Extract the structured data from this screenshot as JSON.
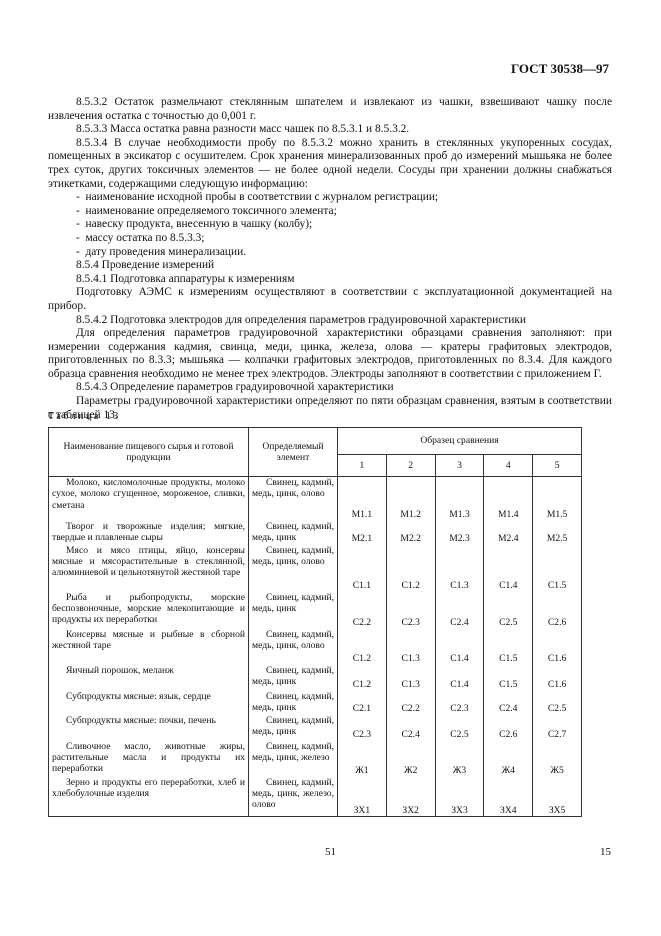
{
  "header": {
    "code": "ГОСТ 30538—97"
  },
  "paragraphs": [
    "8.5.3.2 Остаток размельчают стеклянным шпателем и извлекают из чашки, взвешивают чашку после извлечения остатка с точностью до 0,001 г.",
    "8.5.3.3 Масса остатка равна разности масс чашек по 8.5.3.1 и 8.5.3.2.",
    "8.5.3.4 В случае необходимости пробу по 8.5.3.2 можно хранить в стеклянных укупоренных сосудах, помещенных в эксикатор с осушителем. Срок хранения минерализованных проб до измерений мышьяка не более трех суток, других токсичных элементов — не более одной недели. Сосуды при хранении должны снабжаться этикетками, содержащими следующую информацию:"
  ],
  "list": [
    "наименование исходной пробы в соответствии с журналом регистрации;",
    "наименование определяемого токсичного элемента;",
    "навеску продукта, внесенную в чашку (колбу);",
    "массу остатка по 8.5.3.3;",
    "дату проведения минерализации."
  ],
  "paragraphs2": [
    "8.5.4 Проведение измерений",
    "8.5.4.1 Подготовка аппаратуры к измерениям",
    "Подготовку АЭМС к измерениям осуществляют в соответствии с эксплуатационной документацией на прибор.",
    "8.5.4.2 Подготовка электродов для определения параметров градуировочной характеристики",
    "Для определения параметров градуировочной характеристики образцами сравнения заполняют: при измерении содержания кадмия, свинца, меди, цинка, железа, олова — кратеры графитовых электродов, приготовленных по 8.3.3; мышьяка — колпачки графитовых электродов, приготовленных по 8.3.4. Для каждого образца сравнения необходимо не менее трех электродов. Электроды заполняют в соответствии с приложением Г.",
    "8.5.4.3 Определение параметров градуировочной характеристики",
    "Параметры градуировочной характеристики определяют по пяти образцам сравнения, взятым в соответствии с таблицей 13."
  ],
  "table": {
    "caption": "Таблица 13",
    "headers": [
      "Наименование пищевого сырья и готовой продукции",
      "Определяемый элемент",
      "Образец сравнения"
    ],
    "sample_numbers": [
      "1",
      "2",
      "3",
      "4",
      "5"
    ],
    "rows": [
      [
        "Молоко, кисломолочные продукты, молоко сухое, молоко сгущенное, мороженое, сливки, сметана",
        "Свинец, кадмий, медь, цинк, олово",
        "М1.1",
        "М1.2",
        "М1.3",
        "М1.4",
        "М1.5"
      ],
      [
        "Творог и творожные изделия; мягкие, твердые и плавленые сыры",
        "Свинец, кадмий, медь, цинк",
        "М2.1",
        "М2.2",
        "М2.3",
        "М2.4",
        "М2.5"
      ],
      [
        "Мясо и мясо птицы, яйцо, консервы мясные и мясорастительные в стеклянной, алюминиевой и цельнотянутой жестяной таре",
        "Свинец, кадмий, медь, цинк, олово",
        "С1.1",
        "С1.2",
        "С1.3",
        "С1.4",
        "С1.5"
      ],
      [
        "Рыба и рыбопродукты, морские беспозвоночные, морские млекопитающие и продукты их переработки",
        "Свинец, кадмий, медь, цинк",
        "С2.2",
        "С2.3",
        "С2.4",
        "С2.5",
        "С2.6"
      ],
      [
        "Консервы мясные и рыбные в сборной жестяной таре",
        "Свинец, кадмий, медь, цинк, олово",
        "С1.2",
        "С1.3",
        "С1.4",
        "С1.5",
        "С1.6"
      ],
      [
        "Яичный порошок, меланж",
        "Свинец, кадмий, медь, цинк",
        "С1.2",
        "С1.3",
        "С1.4",
        "С1.5",
        "С1.6"
      ],
      [
        "Субпродукты мясные: язык, сердце",
        "Свинец, кадмий, медь, цинк",
        "С2.1",
        "С2.2",
        "С2.3",
        "С2.4",
        "С2.5"
      ],
      [
        "Субпродукты мясные: почки, печень",
        "Свинец, кадмий, медь, цинк",
        "С2.3",
        "С2.4",
        "С2.5",
        "С2.6",
        "С2.7"
      ],
      [
        "Сливочное масло, животные жиры, растительные масла и продукты их переработки",
        "Свинец, кадмий, медь, цинк, железо",
        "Ж1",
        "Ж2",
        "Ж3",
        "Ж4",
        "Ж5"
      ],
      [
        "Зерно и продукты его переработки, хлеб и хлебобулочные изделия",
        "Свинец, кадмий, медь, цинк, железо, олово",
        "ЗХ1",
        "ЗХ2",
        "ЗХ3",
        "ЗХ4",
        "ЗХ5"
      ]
    ]
  },
  "footer": {
    "page_center": "51",
    "page_right": "15"
  }
}
